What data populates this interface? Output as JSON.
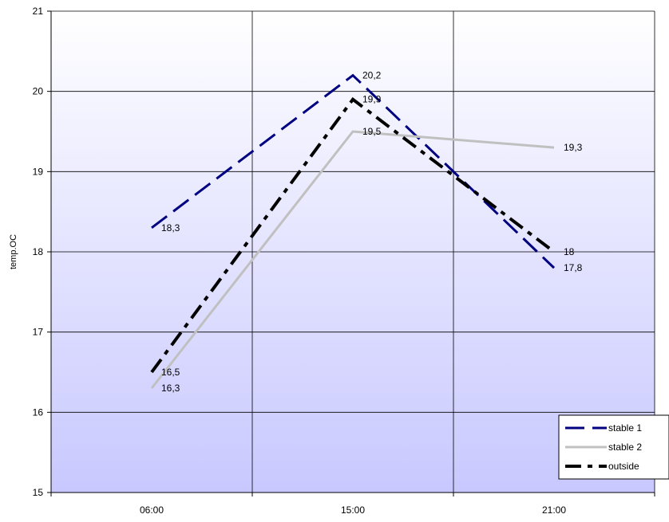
{
  "chart_data": {
    "type": "line",
    "categories": [
      "06:00",
      "15:00",
      "21:00"
    ],
    "ylabel": "temp.OC",
    "ylim": [
      15,
      21
    ],
    "yticks": [
      15,
      16,
      17,
      18,
      19,
      20,
      21
    ],
    "grid": true,
    "legend_position": "bottom-right",
    "series": [
      {
        "name": "stable 1",
        "values": [
          18.3,
          20.2,
          17.8
        ],
        "labels": [
          "18,3",
          "20,2",
          "17,8"
        ],
        "color": "#000080",
        "style": "long-dash"
      },
      {
        "name": "stable 2",
        "values": [
          16.3,
          19.5,
          19.3
        ],
        "labels": [
          "16,3",
          "19,5",
          "19,3"
        ],
        "color": "#c0c0c0",
        "style": "solid"
      },
      {
        "name": "outside",
        "values": [
          16.5,
          19.9,
          18.0
        ],
        "labels": [
          "16,5",
          "19,9",
          "18"
        ],
        "color": "#000000",
        "style": "dash-dot"
      }
    ]
  }
}
